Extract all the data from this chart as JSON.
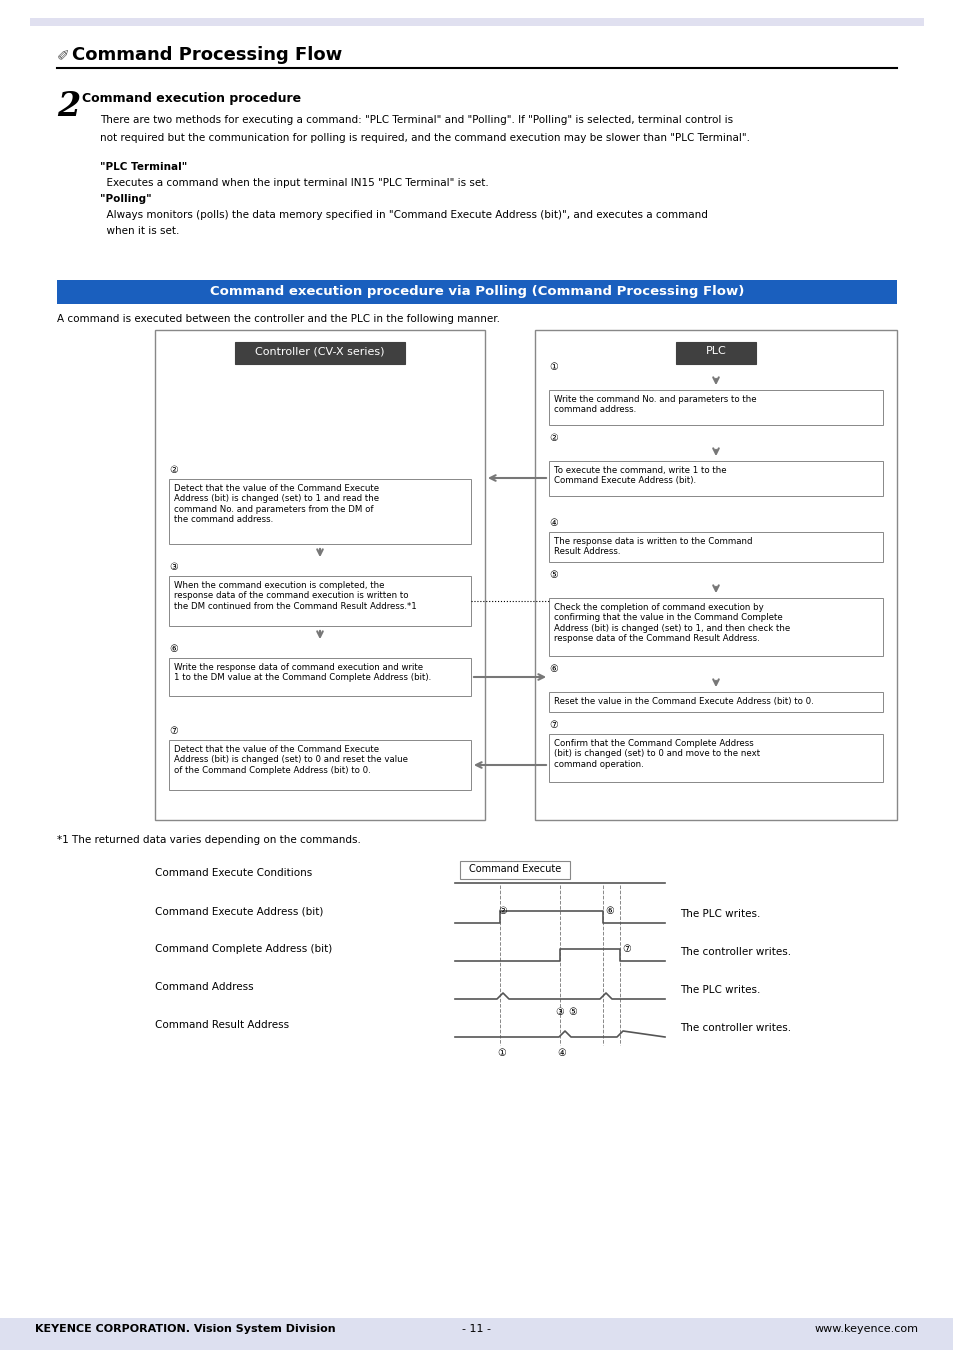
{
  "page_bg": "#ffffff",
  "header_bar_color": "#e0e0f0",
  "footer_bg": "#dde0f0",
  "title": "Command Processing Flow",
  "section_number": "2",
  "section_title": "Command execution procedure",
  "body_text1a": "There are two methods for executing a command: \"PLC Terminal\" and \"Polling\". If \"Polling\" is selected, terminal control is",
  "body_text1b": "not required but the communication for polling is required, and the command execution may be slower than \"PLC Terminal\".",
  "plc_terminal_label": "\"PLC Terminal\"",
  "plc_terminal_desc": "  Executes a command when the input terminal IN15 \"PLC Terminal\" is set.",
  "polling_label": "\"Polling\"",
  "polling_desc1": "  Always monitors (polls) the data memory specified in \"Command Execute Address (bit)\", and executes a command",
  "polling_desc2": "  when it is set.",
  "blue_header_text": "Command execution procedure via Polling (Command Processing Flow)",
  "blue_header_bg": "#1a5fbe",
  "flow_caption": "A command is executed between the controller and the PLC in the following manner.",
  "controller_box_label": "Controller (CV-X series)",
  "plc_box_label": "PLC",
  "footnote": "*1 The returned data varies depending on the commands.",
  "footer_left": "KEYENCE CORPORATION. Vision System Division",
  "footer_center": "- 11 -",
  "footer_right": "www.keyence.com",
  "left_box_texts": {
    "b2_num": "②",
    "b2_text": "Detect that the value of the Command Execute\nAddress (bit) is changed (set) to 1 and read the\ncommand No. and parameters from the DM of\nthe command address.",
    "b3_num": "③",
    "b3_text": "When the command execution is completed, the\nresponse data of the command execution is written to\nthe DM continued from the Command Result Address.*1",
    "b5_num": "⑥",
    "b5_text": "Write the response data of command execution and write\n1 to the DM value at the Command Complete Address (bit).",
    "b7_num": "⑦",
    "b7_text": "Detect that the value of the Command Execute\nAddress (bit) is changed (set) to 0 and reset the value\nof the Command Complete Address (bit) to 0."
  },
  "right_box_texts": {
    "r1_num": "①",
    "r1_text": "Write the command No. and parameters to the\ncommand address.",
    "r2_num": "②",
    "r2_text": "To execute the command, write 1 to the\nCommand Execute Address (bit).",
    "r4_num": "④",
    "r4_text": "The response data is written to the Command\nResult Address.",
    "r5_num": "⑤",
    "r5_text": "Check the completion of command execution by\nconfirming that the value in the Command Complete\nAddress (bit) is changed (set) to 1, and then check the\nresponse data of the Command Result Address.",
    "r6_num": "⑥",
    "r6_text": "Reset the value in the Command Execute Address (bit) to 0.",
    "r7_num": "⑦",
    "r7_text": "Confirm that the Command Complete Address\n(bit) is changed (set) to 0 and move to the next\ncommand operation."
  }
}
